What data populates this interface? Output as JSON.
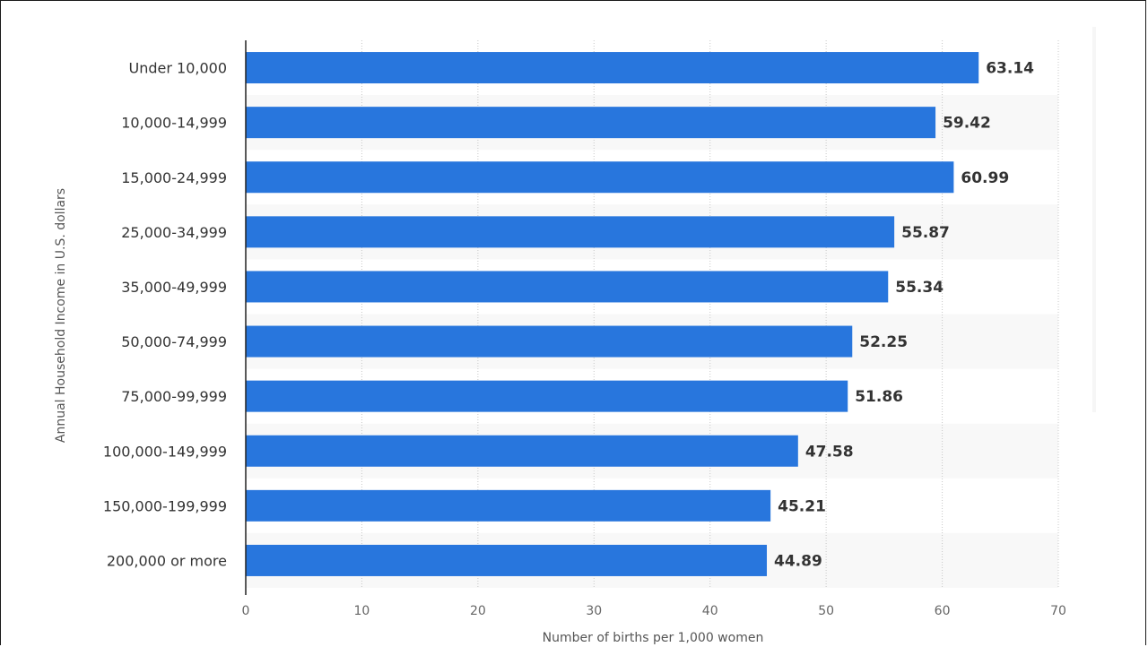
{
  "chart_data": {
    "type": "bar",
    "orientation": "horizontal",
    "title": "",
    "xlabel": "Number of births per 1,000 women",
    "ylabel": "Annual Household Income in U.S. dollars",
    "categories": [
      "Under 10,000",
      "10,000-14,999",
      "15,000-24,999",
      "25,000-34,999",
      "35,000-49,999",
      "50,000-74,999",
      "75,000-99,999",
      "100,000-149,999",
      "150,000-199,999",
      "200,000 or more"
    ],
    "values": [
      63.14,
      59.42,
      60.99,
      55.87,
      55.34,
      52.25,
      51.86,
      47.58,
      45.21,
      44.89
    ],
    "value_labels": [
      "63.14",
      "59.42",
      "60.99",
      "55.87",
      "55.34",
      "52.25",
      "51.86",
      "47.58",
      "45.21",
      "44.89"
    ],
    "xlim": [
      0,
      70
    ],
    "xticks": [
      0,
      10,
      20,
      30,
      40,
      50,
      60,
      70
    ],
    "grid": true,
    "legend": "none",
    "bar_color": "#2876dd",
    "alt_row_color": "#f8f8f8"
  }
}
